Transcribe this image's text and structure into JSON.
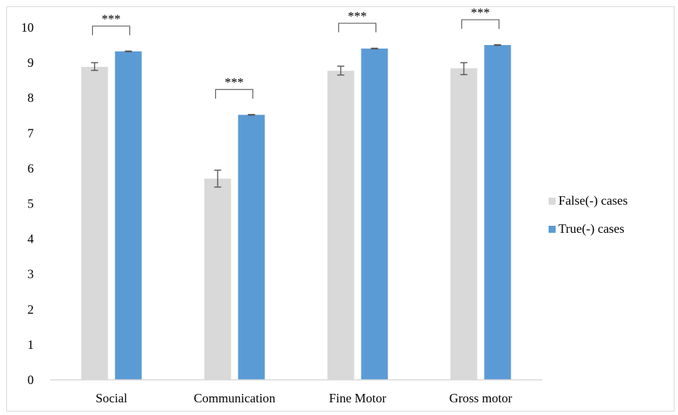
{
  "chart_data": {
    "type": "bar",
    "title": "",
    "xlabel": "",
    "ylabel": "",
    "categories": [
      "Social",
      "Communication",
      "Fine Motor",
      "Gross motor"
    ],
    "ylim": [
      0,
      10
    ],
    "yticks": [
      "0",
      "1",
      "2",
      "3",
      "4",
      "5",
      "6",
      "7",
      "8",
      "9",
      "10"
    ],
    "grid": false,
    "legend_position": "right",
    "series": [
      {
        "name": "False(-) cases",
        "color": "#d9d9d9",
        "values": [
          8.88,
          5.71,
          8.77,
          8.84
        ],
        "error_low": [
          8.78,
          5.47,
          8.65,
          8.66
        ],
        "error_high": [
          9.0,
          5.95,
          8.9,
          9.0
        ]
      },
      {
        "name": "True(-) cases",
        "color": "#5b9bd5",
        "values": [
          9.32,
          7.52,
          9.4,
          9.5
        ],
        "error_low": [
          9.31,
          7.51,
          9.39,
          9.49
        ],
        "error_high": [
          9.33,
          7.53,
          9.41,
          9.51
        ]
      }
    ],
    "significance": [
      {
        "category": "Social",
        "label": "***"
      },
      {
        "category": "Communication",
        "label": "***"
      },
      {
        "category": "Fine Motor",
        "label": "***"
      },
      {
        "category": "Gross motor",
        "label": "***"
      }
    ]
  }
}
